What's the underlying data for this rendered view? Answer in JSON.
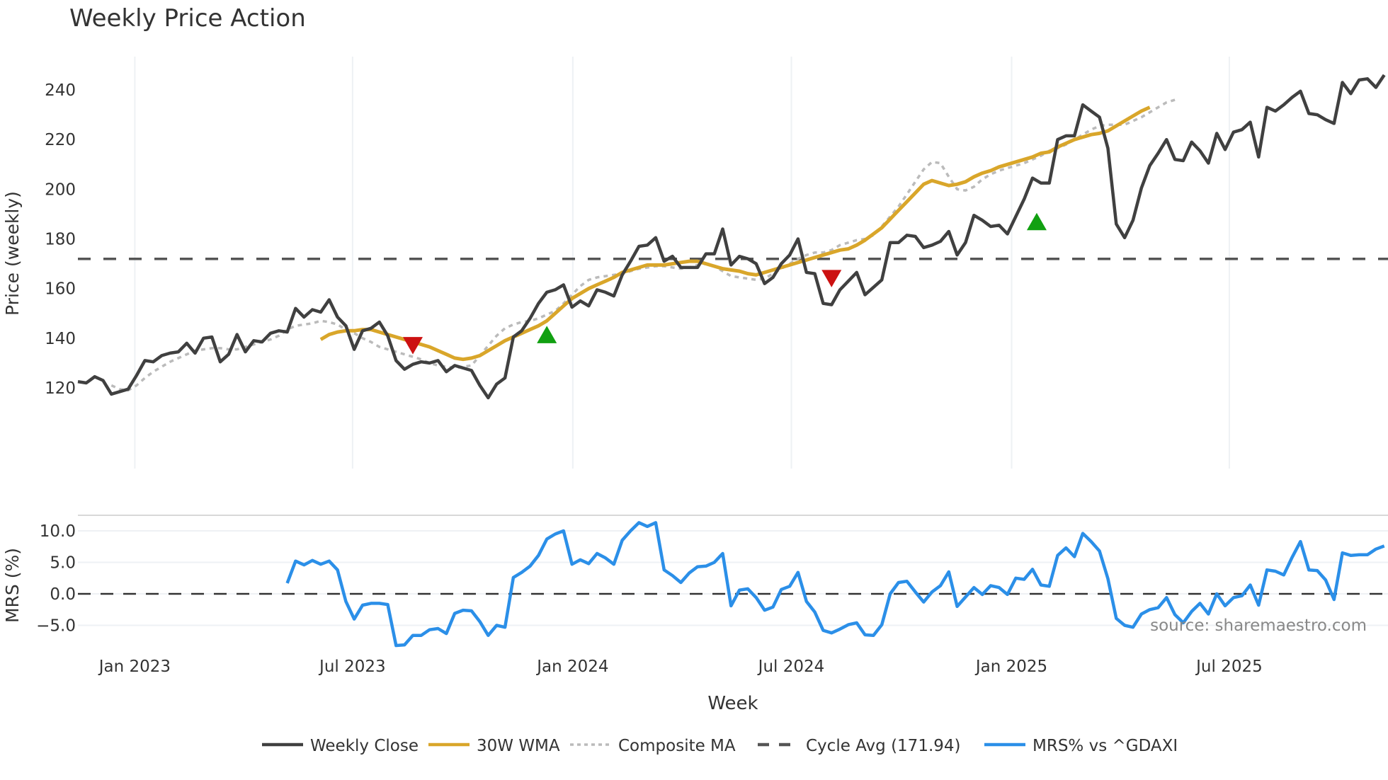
{
  "title": "Weekly Price Action",
  "source_label": "source: sharemaestro.com",
  "colors": {
    "close": "#404040",
    "wma": "#D9A62A",
    "composite": "#BBBBBB",
    "cycle": "#555555",
    "mrs": "#2B8FE8",
    "buy_marker": "#11A011",
    "sell_marker": "#CC1111",
    "grid": "#EEF1F4"
  },
  "legend": [
    {
      "key": "close",
      "label": "Weekly Close",
      "style": "solid"
    },
    {
      "key": "wma",
      "label": "30W WMA",
      "style": "solid"
    },
    {
      "key": "composite",
      "label": "Composite MA",
      "style": "dotted"
    },
    {
      "key": "cycle",
      "label": "Cycle Avg (171.94)",
      "style": "dashed"
    },
    {
      "key": "mrs",
      "label": "MRS% vs ^GDAXI",
      "style": "solid"
    }
  ],
  "chart_data": [
    {
      "type": "line",
      "title": "Weekly Price Action",
      "xlabel": "Week",
      "ylabel": "Price (weekly)",
      "ylim": [
        110,
        252
      ],
      "yticks": [
        120,
        140,
        160,
        180,
        200,
        220,
        240
      ],
      "xtick_labels": [
        "Jan 2023",
        "Jul 2023",
        "Jan 2024",
        "Jul 2024",
        "Jan 2025",
        "Jul 2025"
      ],
      "xtick_index": [
        6.8,
        32.8,
        59.1,
        85.2,
        111.5,
        137.5
      ],
      "grid": true,
      "x_start": "mid Nov 2022",
      "x_step": "1 week",
      "series": [
        {
          "name": "Weekly Close",
          "start_index": 0,
          "values": [
            122.5,
            122,
            124.5,
            123,
            117.5,
            118.5,
            119.5,
            125,
            131,
            130.5,
            133,
            134,
            134.5,
            138,
            134,
            140,
            140.5,
            130.5,
            133.5,
            141.5,
            134.5,
            139,
            138.5,
            142,
            143,
            142.5,
            152,
            148.5,
            151.5,
            150.5,
            155.5,
            148.5,
            145,
            135.5,
            143,
            144,
            146.5,
            141,
            131,
            127.5,
            129.5,
            130.5,
            130,
            131,
            126.5,
            129,
            128,
            127,
            121,
            116,
            121.5,
            124,
            140.5,
            143,
            148,
            154,
            158.5,
            159.5,
            161.5,
            152.5,
            155,
            153,
            159.5,
            158.5,
            157,
            165.5,
            171,
            177,
            177.5,
            180.5,
            171,
            173,
            168.5,
            168.5,
            168.5,
            174,
            174,
            184,
            169.5,
            173,
            172,
            170,
            162,
            164.5,
            170,
            173.5,
            180,
            166.5,
            166,
            154,
            153.5,
            159.5,
            163,
            166.5,
            157.5,
            160.5,
            163.5,
            178.5,
            178.5,
            181.5,
            181,
            176.5,
            177.5,
            179,
            183,
            173.5,
            178.5,
            189.5,
            187.5,
            185,
            185.5,
            182,
            189,
            196,
            204.5,
            202.5,
            202.5,
            220,
            221.5,
            221.5,
            234,
            231.5,
            229,
            216.5,
            186,
            180.5,
            187.5,
            200.5,
            209.5,
            214.5,
            220,
            212,
            211.5,
            219,
            215.5,
            210.5,
            222.5,
            216,
            223,
            224,
            227,
            213,
            233,
            231.5,
            234,
            237,
            239.5,
            230.5,
            230,
            228,
            226.5,
            243,
            238.5,
            244,
            244.5,
            241,
            246
          ]
        },
        {
          "name": "30W WMA",
          "start_index": 29,
          "values": [
            139.5,
            141.5,
            142.5,
            143,
            143,
            143.5,
            143.5,
            142.5,
            141.5,
            140.5,
            139.5,
            138.5,
            137.5,
            136.5,
            135,
            133.5,
            132,
            131.5,
            132,
            133,
            135,
            137,
            139,
            140.5,
            142,
            143.5,
            145,
            147,
            150,
            153,
            156,
            158,
            160,
            161.5,
            163,
            164.5,
            166.5,
            167.5,
            168.5,
            169.5,
            169.5,
            169.5,
            170,
            170.5,
            171,
            171,
            170,
            169,
            168,
            167.5,
            167,
            166,
            165.5,
            166.5,
            167.5,
            168.5,
            169.5,
            170.5,
            171.5,
            172.5,
            173.5,
            174.5,
            175.5,
            176,
            177.5,
            179.5,
            182,
            184.5,
            188,
            191.5,
            195,
            198.5,
            202,
            203.5,
            202.5,
            201.5,
            202,
            203,
            205,
            206.5,
            207.5,
            209,
            210,
            211,
            212,
            213,
            214.5,
            215,
            217,
            218.5,
            220,
            221,
            222,
            222.5,
            223.5,
            225.5,
            227.5,
            229.5,
            231.5,
            233
          ]
        },
        {
          "name": "Composite MA",
          "start_index": 4,
          "values": [
            121,
            119.5,
            119,
            121,
            124,
            126.5,
            128.5,
            130.5,
            132,
            133.5,
            135,
            135.5,
            136,
            136,
            135.5,
            135.5,
            136.5,
            137.5,
            138.5,
            139.5,
            141,
            143.5,
            145,
            145.5,
            146,
            147,
            146.5,
            145.5,
            143.5,
            142,
            140,
            138.5,
            136.5,
            135.5,
            134.5,
            133.5,
            132.5,
            131.5,
            130,
            129,
            128.5,
            128,
            128.5,
            129,
            133,
            137,
            141,
            144,
            145.5,
            146.5,
            147,
            148,
            149.5,
            151,
            154,
            157.5,
            161,
            163.5,
            164.5,
            165,
            165.5,
            166,
            167,
            168,
            168.5,
            169,
            169,
            168.5,
            168,
            168.5,
            169.5,
            170,
            169,
            167,
            165,
            164.5,
            164,
            163.5,
            164,
            166,
            168,
            170,
            172,
            173.5,
            174.5,
            174.5,
            175.5,
            177.5,
            178.5,
            179.5,
            180,
            181.5,
            185,
            189,
            193,
            198,
            203,
            208,
            211,
            210.5,
            205,
            200,
            199.5,
            201,
            204,
            206,
            207.5,
            208.5,
            209.5,
            210.5,
            212,
            213.5,
            215.5,
            216.5,
            218,
            220,
            222,
            224,
            225.5,
            226,
            226,
            226,
            227.5,
            229,
            231,
            233,
            235,
            236
          ]
        },
        {
          "name": "Cycle Avg (171.94)",
          "constant": 171.94
        }
      ],
      "markers": [
        {
          "type": "sell",
          "shape": "triangle-down",
          "index": 40,
          "value": 137.5
        },
        {
          "type": "buy",
          "shape": "triangle-up",
          "index": 56,
          "value": 141
        },
        {
          "type": "sell",
          "shape": "triangle-down",
          "index": 90,
          "value": 164.5
        },
        {
          "type": "buy",
          "shape": "triangle-up",
          "index": 114.5,
          "value": 186.5
        }
      ]
    },
    {
      "type": "line",
      "title": "",
      "xlabel": "Week",
      "ylabel": "MRS (%)",
      "ylim": [
        -9,
        12.5
      ],
      "yticks": [
        -5.0,
        0.0,
        5.0,
        10.0
      ],
      "ytick_labels": [
        "−5.0",
        "0.0",
        "5.0",
        "10.0"
      ],
      "reference_line": 0.0,
      "series": [
        {
          "name": "MRS% vs ^GDAXI",
          "start_index": 25,
          "values": [
            1.7,
            5.2,
            4.6,
            5.3,
            4.7,
            5.2,
            3.8,
            -1.2,
            -4.0,
            -1.8,
            -1.5,
            -1.5,
            -1.7,
            -8.2,
            -8.1,
            -6.6,
            -6.6,
            -5.7,
            -5.5,
            -6.3,
            -3.1,
            -2.6,
            -2.7,
            -4.4,
            -6.6,
            -5.0,
            -5.3,
            2.6,
            3.4,
            4.4,
            6.1,
            8.7,
            9.5,
            10.0,
            4.7,
            5.4,
            4.8,
            6.4,
            5.7,
            4.7,
            8.5,
            10.0,
            11.3,
            10.7,
            11.3,
            3.8,
            2.9,
            1.8,
            3.3,
            4.3,
            4.4,
            5.0,
            6.4,
            -1.9,
            0.6,
            0.8,
            -0.6,
            -2.6,
            -2.1,
            0.7,
            1.2,
            3.4,
            -1.2,
            -2.9,
            -5.8,
            -6.2,
            -5.6,
            -4.9,
            -4.6,
            -6.5,
            -6.6,
            -4.9,
            0.0,
            1.8,
            2.0,
            0.3,
            -1.3,
            0.3,
            1.3,
            3.5,
            -2.0,
            -0.5,
            1.0,
            -0.1,
            1.3,
            1.0,
            -0.1,
            2.5,
            2.3,
            3.9,
            1.4,
            1.2,
            6.1,
            7.3,
            5.9,
            9.6,
            8.3,
            6.8,
            2.4,
            -3.9,
            -5.0,
            -5.3,
            -3.2,
            -2.5,
            -2.2,
            -0.6,
            -3.3,
            -4.6,
            -2.8,
            -1.5,
            -3.2,
            0.0,
            -1.9,
            -0.6,
            -0.3,
            1.4,
            -1.8,
            3.8,
            3.6,
            3.0,
            5.8,
            8.3,
            3.8,
            3.7,
            2.2,
            -0.9,
            6.5,
            6.1,
            6.2,
            6.2,
            7.1,
            7.6
          ]
        }
      ]
    }
  ],
  "axes": {
    "price": {
      "ylabel": "Price (weekly)",
      "ticks": [
        "120",
        "140",
        "160",
        "180",
        "200",
        "220",
        "240"
      ]
    },
    "mrs": {
      "ylabel": "MRS (%)",
      "ticks": [
        "−5.0",
        "0.0",
        "5.0",
        "10.0"
      ]
    },
    "x": {
      "label": "Week",
      "ticks": [
        "Jan 2023",
        "Jul 2023",
        "Jan 2024",
        "Jul 2024",
        "Jan 2025",
        "Jul 2025"
      ]
    }
  }
}
